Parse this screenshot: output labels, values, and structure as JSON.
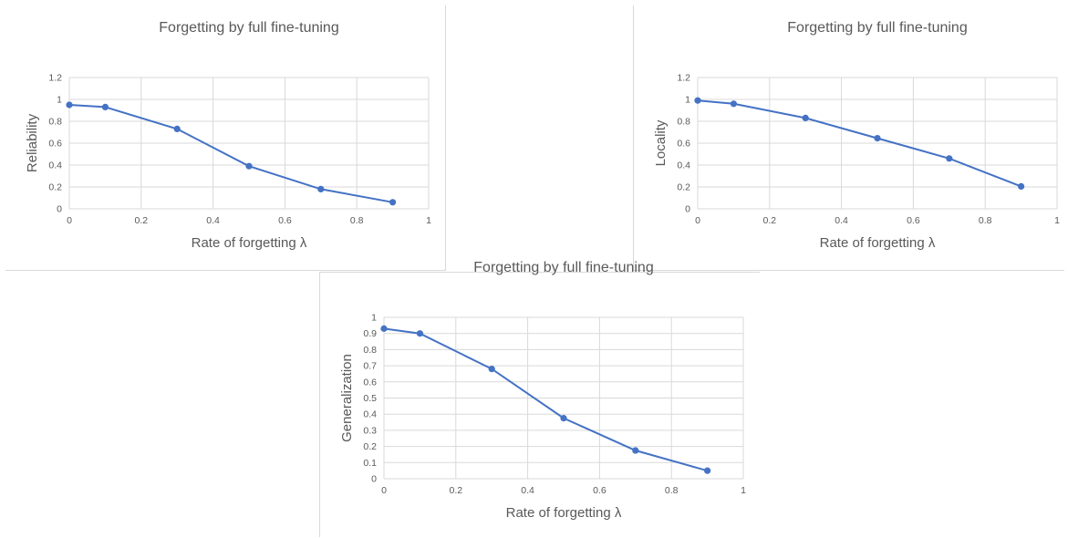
{
  "chart_data": [
    {
      "type": "line",
      "title": "Forgetting by full fine-tuning",
      "xlabel": "Rate of forgetting λ",
      "ylabel": "Reliability",
      "xlim": [
        0,
        1
      ],
      "ylim": [
        0,
        1.2
      ],
      "xticks": [
        "0",
        "0.2",
        "0.4",
        "0.6",
        "0.8",
        "1"
      ],
      "yticks": [
        "0",
        "0.2",
        "0.4",
        "0.6",
        "0.8",
        "1",
        "1.2"
      ],
      "grid": true,
      "series": [
        {
          "color": "#4472c4",
          "x": [
            0,
            0.1,
            0.3,
            0.5,
            0.7,
            0.9
          ],
          "y": [
            0.95,
            0.93,
            0.73,
            0.39,
            0.18,
            0.06
          ]
        }
      ]
    },
    {
      "type": "line",
      "title": "Forgetting by full fine-tuning",
      "xlabel": "Rate of forgetting λ",
      "ylabel": "Locality",
      "xlim": [
        0,
        1
      ],
      "ylim": [
        0,
        1.2
      ],
      "xticks": [
        "0",
        "0.2",
        "0.4",
        "0.6",
        "0.8",
        "1"
      ],
      "yticks": [
        "0",
        "0.2",
        "0.4",
        "0.6",
        "0.8",
        "1",
        "1.2"
      ],
      "grid": true,
      "series": [
        {
          "color": "#4472c4",
          "x": [
            0,
            0.1,
            0.3,
            0.5,
            0.7,
            0.9
          ],
          "y": [
            0.99,
            0.96,
            0.83,
            0.645,
            0.46,
            0.205
          ]
        }
      ]
    },
    {
      "type": "line",
      "title": "Forgetting by full fine-tuning",
      "xlabel": "Rate of forgetting λ",
      "ylabel": "Generalization",
      "xlim": [
        0,
        1
      ],
      "ylim": [
        0,
        1
      ],
      "xticks": [
        "0",
        "0.2",
        "0.4",
        "0.6",
        "0.8",
        "1"
      ],
      "yticks": [
        "0",
        "0.1",
        "0.2",
        "0.3",
        "0.4",
        "0.5",
        "0.6",
        "0.7",
        "0.8",
        "0.9",
        "1"
      ],
      "grid": true,
      "series": [
        {
          "color": "#4472c4",
          "x": [
            0,
            0.1,
            0.3,
            0.5,
            0.7,
            0.9
          ],
          "y": [
            0.93,
            0.9,
            0.68,
            0.375,
            0.175,
            0.05
          ]
        }
      ]
    }
  ]
}
